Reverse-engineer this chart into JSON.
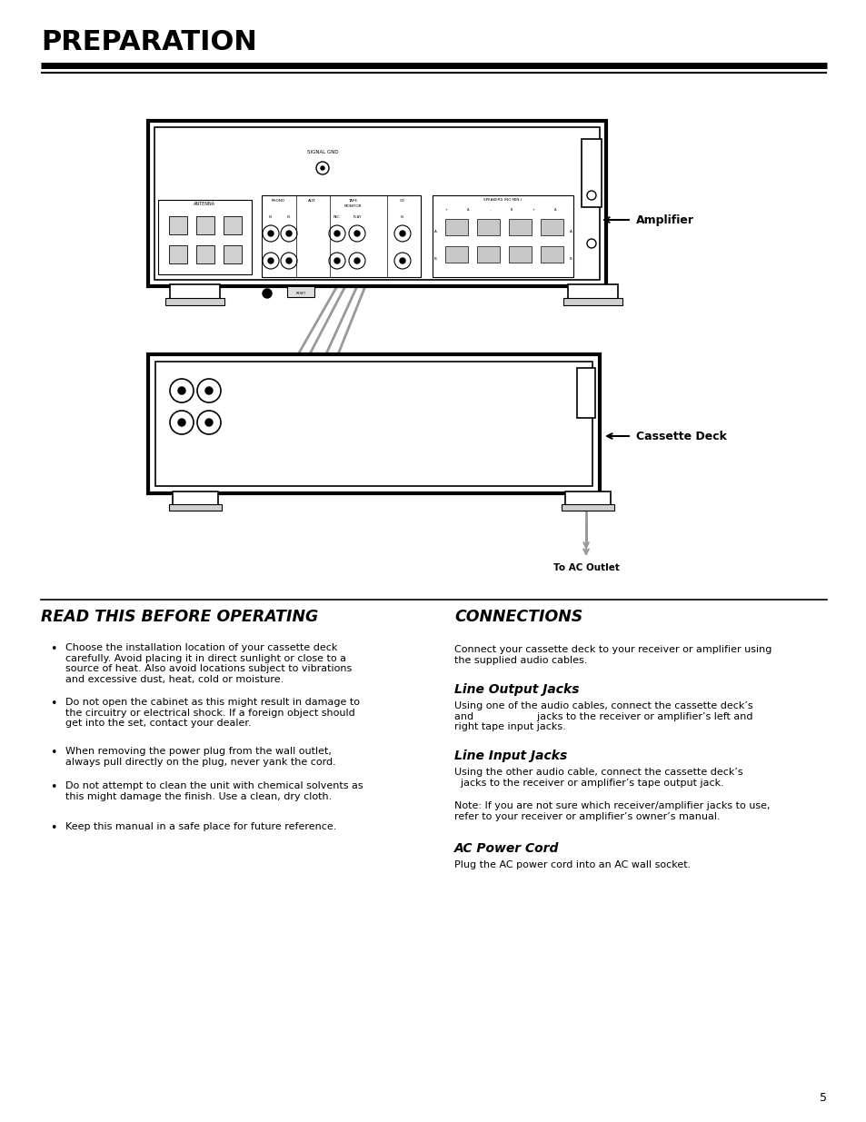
{
  "bg_color": "#ffffff",
  "page_number": "5",
  "title": "PREPARATION",
  "title_fontsize": 22,
  "amplifier_label": "Amplifier",
  "cassette_deck_label": "Cassette Deck",
  "ac_outlet_label": "To AC Outlet",
  "section1_title": "READ THIS BEFORE OPERATING",
  "section2_title": "CONNECTIONS",
  "bullet_items": [
    "Choose the installation location of your cassette deck\ncarefully. Avoid placing it in direct sunlight or close to a\nsource of heat. Also avoid locations subject to vibrations\nand excessive dust, heat, cold or moisture.",
    "Do not open the cabinet as this might result in damage to\nthe circuitry or electrical shock. If a foreign object should\nget into the set, contact your dealer.",
    "When removing the power plug from the wall outlet,\nalways pull directly on the plug, never yank the cord.",
    "Do not attempt to clean the unit with chemical solvents as\nthis might damage the finish. Use a clean, dry cloth.",
    "Keep this manual in a safe place for future reference."
  ],
  "connections_intro": "Connect your cassette deck to your receiver or amplifier using\nthe supplied audio cables.",
  "line_output_jacks_title": "Line Output Jacks",
  "line_output_jacks_text": "Using one of the audio cables, connect the cassette deck’s\nand                    jacks to the receiver or amplifier’s left and\nright tape input jacks.",
  "line_input_jacks_title": "Line Input Jacks",
  "line_input_jacks_text": "Using the other audio cable, connect the cassette deck’s\n  jacks to the receiver or amplifier’s tape output jack.",
  "note_text": "Note: If you are not sure which receiver/amplifier jacks to use,\nrefer to your receiver or amplifier’s owner’s manual.",
  "ac_power_cord_title": "AC Power Cord",
  "ac_power_cord_text": "Plug the AC power cord into an AC wall socket."
}
